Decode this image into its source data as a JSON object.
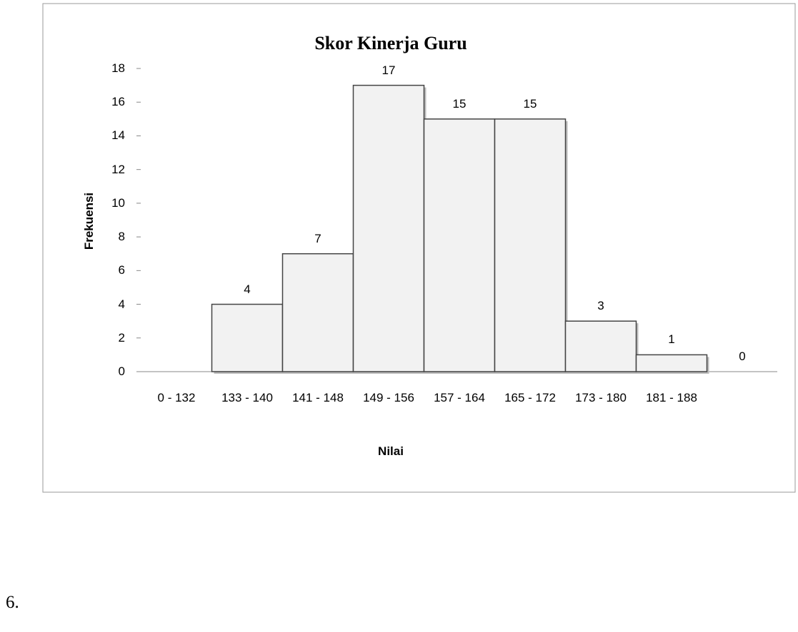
{
  "item_number": "6.",
  "chart_data": {
    "type": "bar",
    "title": "Skor Kinerja Guru",
    "x_label": "Nilai",
    "y_label": "Frekuensi",
    "categories": [
      "0 - 132",
      "133 - 140",
      "141 - 148",
      "149 - 156",
      "157 - 164",
      "165 - 172",
      "173 - 180",
      "181 - 188",
      null
    ],
    "values": [
      null,
      4,
      7,
      17,
      15,
      15,
      3,
      1,
      0
    ],
    "color": "#f2f2f2",
    "ylim": [
      0,
      18
    ],
    "yticks": [
      0,
      2,
      4,
      6,
      8,
      10,
      12,
      14,
      16,
      18
    ],
    "grid": false
  }
}
